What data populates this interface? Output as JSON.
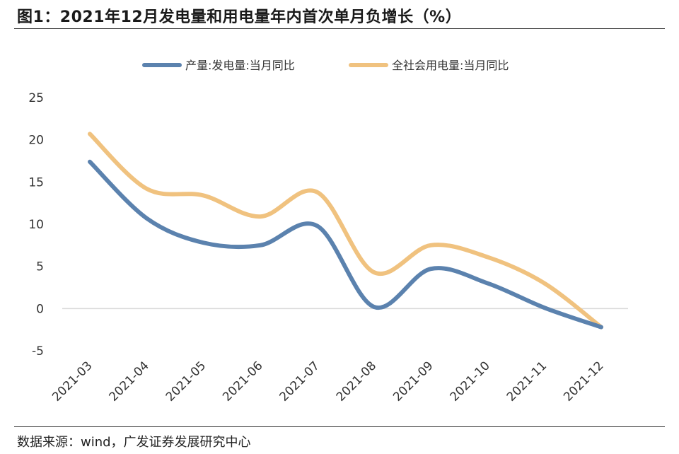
{
  "header": {
    "title": "图1：2021年12月发电量和用电量年内首次单月负增长（%）"
  },
  "footer": {
    "source": "数据来源：wind，广发证券发展研究中心"
  },
  "chart_data": {
    "type": "line",
    "categories": [
      "2021-03",
      "2021-04",
      "2021-05",
      "2021-06",
      "2021-07",
      "2021-08",
      "2021-09",
      "2021-10",
      "2021-11",
      "2021-12"
    ],
    "series": [
      {
        "name": "产量:发电量:当月同比",
        "color": "#5b82ae",
        "values": [
          17.4,
          10.7,
          7.8,
          7.5,
          9.8,
          0.2,
          4.7,
          3.0,
          0.1,
          -2.2
        ]
      },
      {
        "name": "全社会用电量:当月同比",
        "color": "#f0c27f",
        "values": [
          20.7,
          14.2,
          13.4,
          10.9,
          13.8,
          4.3,
          7.5,
          6.1,
          3.0,
          -2.2
        ]
      }
    ],
    "yticks": [
      25,
      20,
      15,
      10,
      5,
      0,
      -5
    ],
    "ylim": [
      -5,
      25
    ],
    "legend_position": "top",
    "grid": false
  }
}
